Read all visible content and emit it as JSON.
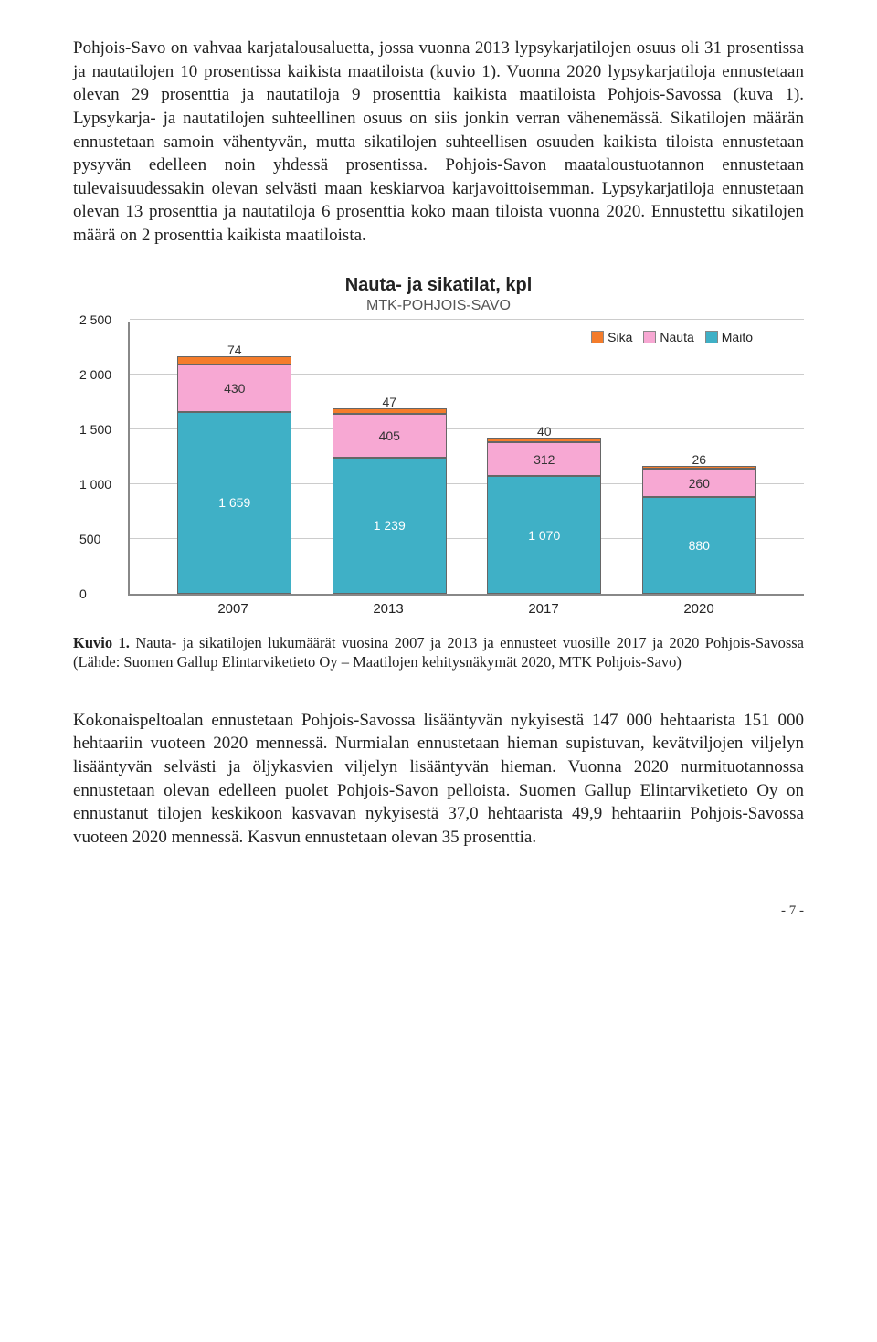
{
  "paragraphs": {
    "p1": "Pohjois-Savo on vahvaa karjatalousaluetta, jossa vuonna 2013 lypsykarjatilojen osuus oli 31 prosentissa ja nautatilojen 10 prosentissa kaikista maatiloista (kuvio 1). Vuonna 2020 lypsykarjatiloja ennustetaan olevan 29 prosenttia ja nautatiloja 9 prosenttia kaikista maatiloista Pohjois-Savossa (kuva 1). Lypsykarja- ja nautatilojen suhteellinen osuus on siis jonkin verran vähenemässä. Sikatilojen määrän ennustetaan samoin vähentyvän, mutta sikatilojen suhteellisen osuuden kaikista tiloista ennustetaan pysyvän edelleen noin yhdessä prosentissa. Pohjois-Savon maataloustuotannon ennustetaan tulevaisuudessakin olevan selvästi maan keskiarvoa karjavoittoisemman. Lypsykarjatiloja ennustetaan olevan 13 prosenttia ja nautatiloja 6 prosenttia koko maan tiloista vuonna 2020. Ennustettu sikatilojen määrä on 2 prosenttia kaikista maatiloista.",
    "p2": "Kokonaispeltoalan ennustetaan Pohjois-Savossa lisääntyvän nykyisestä 147 000 hehtaarista 151 000 hehtaariin vuoteen 2020 mennessä. Nurmialan ennustetaan hieman supistuvan, kevätviljojen viljelyn lisääntyvän selvästi ja öljykasvien viljelyn lisääntyvän hieman. Vuonna 2020 nurmituotannossa ennustetaan olevan edelleen puolet Pohjois-Savon pelloista. Suomen Gallup Elintarviketieto Oy on ennustanut tilojen keskikoon kasvavan nykyisestä 37,0 hehtaarista 49,9 hehtaariin Pohjois-Savossa vuoteen 2020 mennessä. Kasvun ennustetaan olevan 35 prosenttia."
  },
  "chart": {
    "title": "Nauta- ja sikatilat, kpl",
    "subtitle": "MTK-POHJOIS-SAVO",
    "type": "stacked-bar",
    "legend": [
      {
        "label": "Sika",
        "color": "#f47c2b"
      },
      {
        "label": "Nauta",
        "color": "#f7a8d3"
      },
      {
        "label": "Maito",
        "color": "#3fb0c6"
      }
    ],
    "categories": [
      "2007",
      "2013",
      "2017",
      "2020"
    ],
    "series": {
      "maito": {
        "color": "#3fb0c6",
        "values": [
          1659,
          1239,
          1070,
          880
        ]
      },
      "nauta": {
        "color": "#f7a8d3",
        "values": [
          430,
          405,
          312,
          260
        ]
      },
      "sika": {
        "color": "#f47c2b",
        "values": [
          74,
          47,
          40,
          26
        ]
      }
    },
    "ymax": 2500,
    "ytick_step": 500,
    "yticks": [
      "0",
      "500",
      "1 000",
      "1 500",
      "2 000",
      "2 500"
    ],
    "value_labels": {
      "maito": [
        "1 659",
        "1 239",
        "1 070",
        "880"
      ],
      "nauta": [
        "430",
        "405",
        "312",
        "260"
      ],
      "sika": [
        "74",
        "47",
        "40",
        "26"
      ]
    },
    "grid_color": "#cccccc",
    "border_color": "#888888",
    "bar_width": 0.55,
    "background_color": "#ffffff"
  },
  "caption": {
    "label": "Kuvio 1.",
    "text": " Nauta- ja sikatilojen lukumäärät vuosina 2007 ja 2013 ja ennusteet vuosille 2017 ja 2020 Pohjois-Savossa (Lähde: Suomen Gallup Elintarviketieto Oy – Maatilojen kehitysnäkymät 2020, MTK Pohjois-Savo)"
  },
  "page_number": "- 7 -"
}
